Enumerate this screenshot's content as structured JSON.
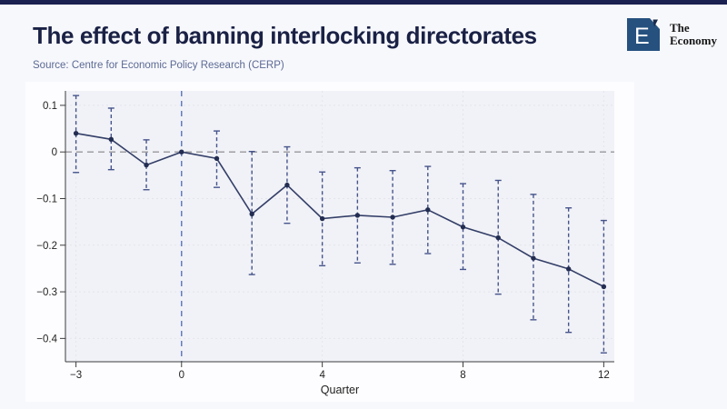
{
  "page": {
    "top_bar_color": "#1b2150",
    "background_color": "#f7f8fc",
    "figure_background": "#fdfdff"
  },
  "header": {
    "title": "The effect of banning interlocking directorates",
    "source": "Source: Centre for Economic Policy Research (CERP)"
  },
  "brand": {
    "letter": "E",
    "name_line1": "The",
    "name_line2": "Economy",
    "square_color": "#26517f",
    "mark_color": "#1a2a4a"
  },
  "chart_data": {
    "type": "line",
    "subtype": "event-study with 95% confidence intervals",
    "xlabel": "Quarter",
    "ylabel": "",
    "x": [
      -3,
      -2,
      -1,
      0,
      1,
      2,
      3,
      4,
      5,
      6,
      7,
      8,
      9,
      10,
      11,
      12
    ],
    "series": [
      {
        "name": "estimate",
        "values": [
          0.04,
          0.027,
          -0.028,
          0.0,
          -0.014,
          -0.133,
          -0.071,
          -0.143,
          -0.136,
          -0.14,
          -0.124,
          -0.161,
          -0.184,
          -0.228,
          -0.251,
          -0.289
        ]
      },
      {
        "name": "ci_low",
        "values": [
          -0.044,
          -0.038,
          -0.081,
          null,
          -0.076,
          -0.263,
          -0.153,
          -0.244,
          -0.238,
          -0.241,
          -0.218,
          -0.252,
          -0.305,
          -0.36,
          -0.387,
          -0.431
        ]
      },
      {
        "name": "ci_high",
        "values": [
          0.121,
          0.094,
          0.026,
          null,
          0.045,
          0.001,
          0.011,
          -0.043,
          -0.034,
          -0.04,
          -0.031,
          -0.068,
          -0.061,
          -0.091,
          -0.12,
          -0.147
        ]
      }
    ],
    "reference_x": 0,
    "zero_line_y": 0,
    "xlim": [
      -3.3,
      12.3
    ],
    "ylim": [
      -0.45,
      0.131
    ],
    "xticks": [
      -3,
      0,
      4,
      8,
      12
    ],
    "xtick_labels": [
      "−3",
      "0",
      "4",
      "8",
      "12"
    ],
    "yticks": [
      0.1,
      0,
      -0.1,
      -0.2,
      -0.3,
      -0.4
    ],
    "ytick_labels": [
      "0.1",
      "0",
      "−0.1",
      "−0.2",
      "−0.3",
      "−0.4"
    ],
    "grid": true,
    "legend": null,
    "colors": {
      "series_line": "#343f68",
      "marker": "#232d52",
      "ci_bar": "#46548b",
      "reference_line": "#5873bb",
      "zero_line": "#96969c",
      "grid_line": "#e4e5ec",
      "axis_line": "#3c3c3c",
      "tick_text": "#1f1f1f",
      "plot_background": "#f1f2f7"
    }
  }
}
